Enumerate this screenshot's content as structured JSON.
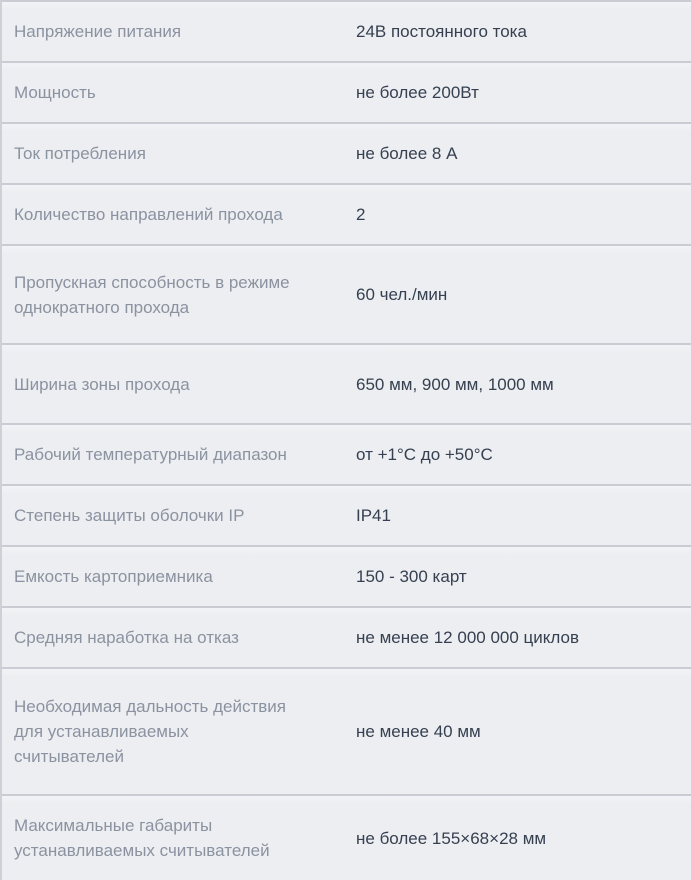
{
  "table": {
    "rows": [
      {
        "label": "Напряжение питания",
        "value": "24В постоянного тока"
      },
      {
        "label": "Мощность",
        "value": "не более 200Вт"
      },
      {
        "label": "Ток потребления",
        "value": "не более 8 А"
      },
      {
        "label": "Количество направлений прохода",
        "value": "2"
      },
      {
        "label": "Пропускная способность в режиме однократного прохода",
        "value": "60 чел./мин"
      },
      {
        "label": "Ширина зоны прохода",
        "value": "650 мм, 900 мм, 1000 мм"
      },
      {
        "label": "Рабочий температурный диапазон",
        "value": "от +1°С до +50°С"
      },
      {
        "label": "Степень защиты оболочки IP",
        "value": "IP41"
      },
      {
        "label": "Емкость картоприемника",
        "value": "150 - 300 карт"
      },
      {
        "label": "Средняя наработка на отказ",
        "value": "не менее 12 000 000 циклов"
      },
      {
        "label": "Необходимая дальность действия для устанавливаемых считывателей",
        "value": "не менее 40 мм"
      },
      {
        "label": "Максимальные габариты устанавливаемых считывателей",
        "value": "не более 155×68×28 мм"
      }
    ]
  },
  "colors": {
    "row_background": "#eceef1",
    "separator": "#c9ccd3",
    "left_border": "#cdd0d6",
    "label_text": "#8b92a0",
    "value_text": "#364050"
  }
}
